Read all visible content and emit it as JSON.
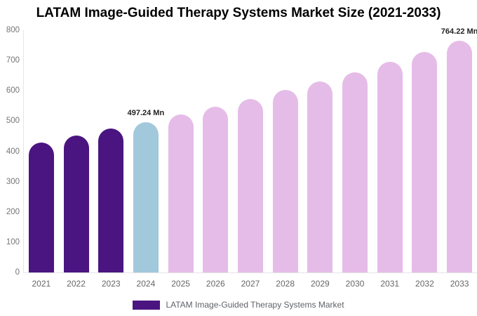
{
  "chart_data": {
    "type": "bar",
    "title": "LATAM Image-Guided Therapy Systems Market Size (2021-2033)",
    "categories": [
      "2021",
      "2022",
      "2023",
      "2024",
      "2025",
      "2026",
      "2027",
      "2028",
      "2029",
      "2030",
      "2031",
      "2032",
      "2033"
    ],
    "series": [
      {
        "name": "LATAM Image-Guided Therapy Systems Market",
        "values": [
          430,
          452,
          475,
          497.24,
          521.5,
          547,
          574,
          602,
          631,
          662,
          695,
          729,
          764.22
        ]
      }
    ],
    "unit": "Mn",
    "ylim": [
      0,
      800
    ],
    "yticks": [
      0,
      100,
      200,
      300,
      400,
      500,
      600,
      700,
      800
    ],
    "grid": false,
    "legend_position": "bottom",
    "bar_roles": [
      "historical",
      "historical",
      "historical",
      "current",
      "forecast",
      "forecast",
      "forecast",
      "forecast",
      "forecast",
      "forecast",
      "forecast",
      "forecast",
      "forecast"
    ],
    "role_colors": {
      "historical": "#4A1580",
      "current": "#A2C8DC",
      "forecast": "#E5BCE8"
    },
    "annotations": [
      {
        "index": 3,
        "text": "497.24 Mn"
      },
      {
        "index": 12,
        "text": "764.22 Mn"
      }
    ]
  },
  "legend": {
    "label": "LATAM Image-Guided Therapy Systems Market",
    "swatch_color": "#4A1580"
  },
  "colors": {
    "title_text": "#000000",
    "tick_label": "#757575",
    "x_label": "#666666",
    "annotation_text": "#1f1f1f",
    "axis_line": "#e5e5e5",
    "background": "#ffffff"
  }
}
